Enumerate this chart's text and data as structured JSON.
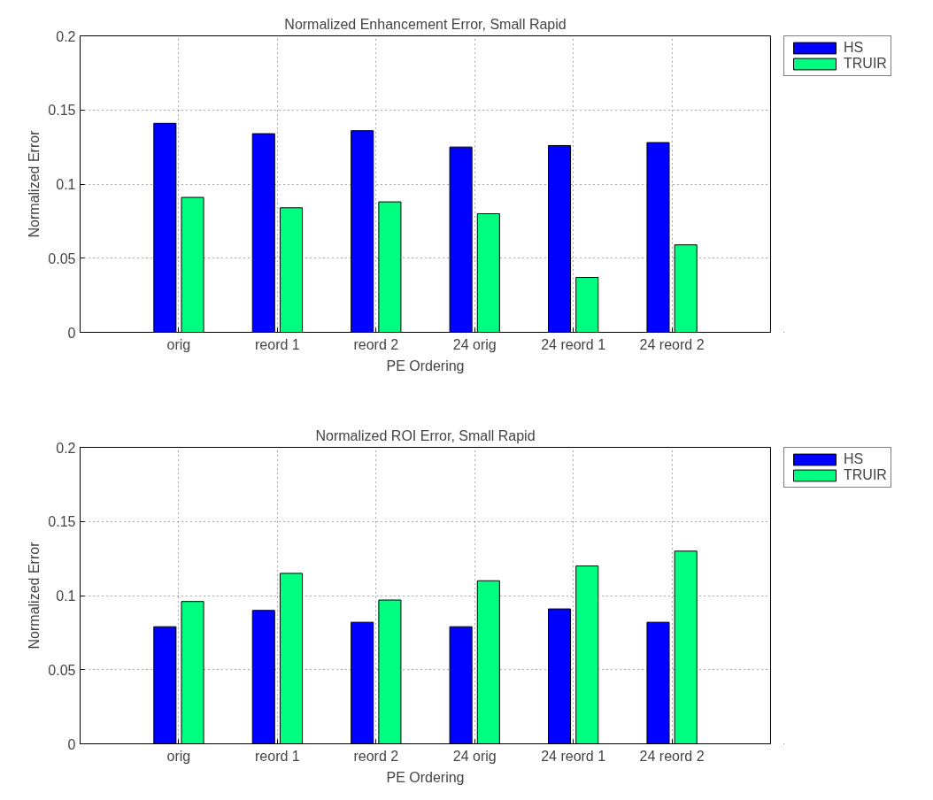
{
  "chart_data": [
    {
      "type": "bar",
      "title": "Normalized Enhancement Error, Small Rapid",
      "xlabel": "PE Ordering",
      "ylabel": "Normalized Error",
      "categories": [
        "orig",
        "reord 1",
        "reord 2",
        "24 orig",
        "24 reord 1",
        "24 reord 2"
      ],
      "series": [
        {
          "name": "HS",
          "color": "#0000ff",
          "values": [
            0.141,
            0.134,
            0.136,
            0.125,
            0.126,
            0.128
          ]
        },
        {
          "name": "TRUIR",
          "color": "#00ff80",
          "values": [
            0.091,
            0.084,
            0.088,
            0.08,
            0.037,
            0.059
          ]
        }
      ],
      "ylim": [
        0,
        0.2
      ],
      "yticks": [
        0,
        0.05,
        0.1,
        0.15,
        0.2
      ],
      "grid": true,
      "legend": "right"
    },
    {
      "type": "bar",
      "title": "Normalized ROI Error, Small Rapid",
      "xlabel": "PE Ordering",
      "ylabel": "Normalized Error",
      "categories": [
        "orig",
        "reord 1",
        "reord 2",
        "24 orig",
        "24 reord 1",
        "24 reord 2"
      ],
      "series": [
        {
          "name": "HS",
          "color": "#0000ff",
          "values": [
            0.079,
            0.09,
            0.082,
            0.079,
            0.091,
            0.082
          ]
        },
        {
          "name": "TRUIR",
          "color": "#00ff80",
          "values": [
            0.096,
            0.115,
            0.097,
            0.11,
            0.12,
            0.13
          ]
        }
      ],
      "ylim": [
        0,
        0.2
      ],
      "yticks": [
        0,
        0.05,
        0.1,
        0.15,
        0.2
      ],
      "grid": true,
      "legend": "right"
    }
  ]
}
